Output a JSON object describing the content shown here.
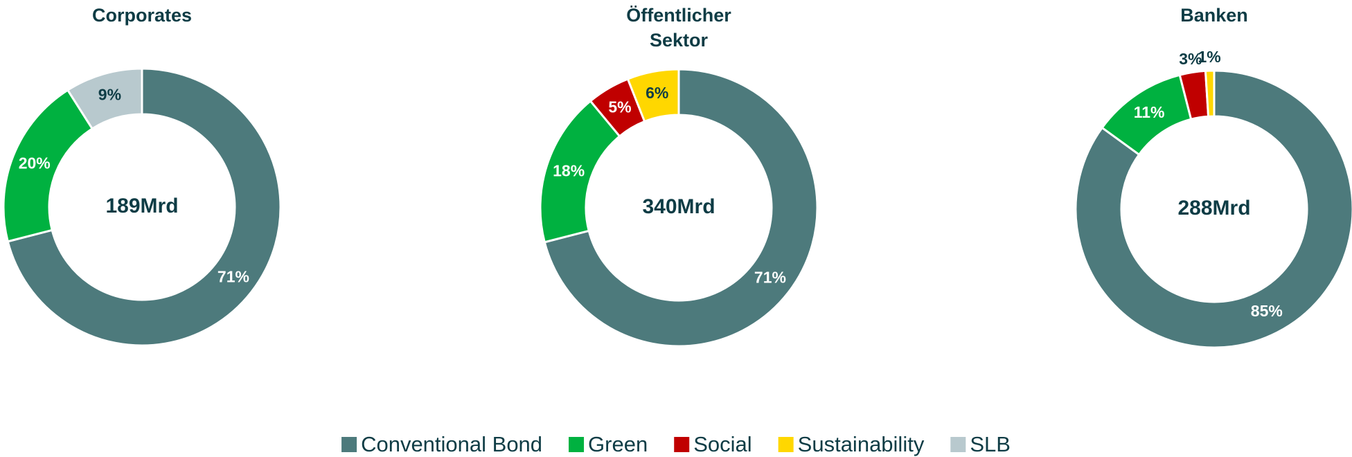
{
  "chart_data": [
    {
      "type": "pie",
      "title": "Corporates",
      "center_label": "189Mrd",
      "categories": [
        "Conventional Bond",
        "Green",
        "SLB"
      ],
      "values": [
        71,
        20,
        9
      ],
      "value_labels": [
        "71%",
        "20%",
        "9%"
      ],
      "colors": [
        "#4d7a7c",
        "#00b140",
        "#b8c9ce"
      ]
    },
    {
      "type": "pie",
      "title": "Öffentlicher Sektor",
      "center_label": "340Mrd",
      "categories": [
        "Conventional Bond",
        "Green",
        "Social",
        "Sustainability"
      ],
      "values": [
        71,
        18,
        5,
        6
      ],
      "value_labels": [
        "71%",
        "18%",
        "5%",
        "6%"
      ],
      "colors": [
        "#4d7a7c",
        "#00b140",
        "#c00000",
        "#ffd700"
      ]
    },
    {
      "type": "pie",
      "title": "Banken",
      "center_label": "288Mrd",
      "categories": [
        "Conventional Bond",
        "Green",
        "Social",
        "Sustainability"
      ],
      "values": [
        85,
        11,
        3,
        1
      ],
      "value_labels": [
        "85%",
        "11%",
        "3%",
        "1%"
      ],
      "colors": [
        "#4d7a7c",
        "#00b140",
        "#c00000",
        "#ffd700"
      ]
    }
  ],
  "legend": {
    "names": [
      "Conventional Bond",
      "Green",
      "Social",
      "Sustainability",
      "SLB"
    ],
    "colors": [
      "#4d7a7c",
      "#00b140",
      "#c00000",
      "#ffd700",
      "#b8c9ce"
    ]
  }
}
